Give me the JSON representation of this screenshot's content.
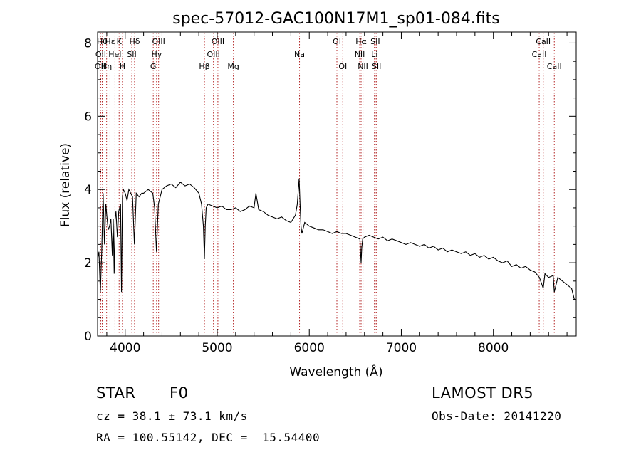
{
  "chart_data": {
    "type": "line",
    "title": "spec-57012-GAC100N17M1_sp01-084.fits",
    "xlabel": "Wavelength (Å)",
    "ylabel": "Flux (relative)",
    "xlim": [
      3700,
      8900
    ],
    "ylim": [
      0,
      8.3
    ],
    "x_ticks": [
      4000,
      5000,
      6000,
      7000,
      8000
    ],
    "y_ticks": [
      0,
      2,
      4,
      6,
      8
    ],
    "grid": false,
    "line_color": "#000000",
    "marker_line_color": "#b22222",
    "series": [
      {
        "x": [
          3700,
          3715,
          3730,
          3745,
          3760,
          3775,
          3790,
          3800,
          3815,
          3830,
          3845,
          3860,
          3870,
          3880,
          3890,
          3900,
          3915,
          3930,
          3950,
          3960,
          3970,
          3980,
          4000,
          4020,
          4040,
          4060,
          4080,
          4100,
          4120,
          4150,
          4180,
          4200,
          4250,
          4300,
          4320,
          4340,
          4360,
          4380,
          4400,
          4450,
          4500,
          4550,
          4600,
          4650,
          4700,
          4750,
          4800,
          4830,
          4850,
          4861,
          4870,
          4880,
          4900,
          4950,
          5000,
          5050,
          5100,
          5150,
          5200,
          5250,
          5300,
          5350,
          5400,
          5420,
          5450,
          5500,
          5550,
          5600,
          5650,
          5700,
          5750,
          5800,
          5850,
          5870,
          5890,
          5900,
          5910,
          5920,
          5950,
          6000,
          6050,
          6100,
          6150,
          6200,
          6250,
          6300,
          6350,
          6400,
          6450,
          6500,
          6550,
          6563,
          6570,
          6580,
          6600,
          6650,
          6700,
          6750,
          6800,
          6850,
          6900,
          6950,
          7000,
          7050,
          7100,
          7150,
          7200,
          7250,
          7300,
          7350,
          7400,
          7450,
          7500,
          7550,
          7600,
          7650,
          7700,
          7750,
          7800,
          7850,
          7900,
          7950,
          8000,
          8050,
          8100,
          8150,
          8200,
          8250,
          8300,
          8350,
          8400,
          8450,
          8500,
          8542,
          8560,
          8600,
          8650,
          8662,
          8700,
          8750,
          8800,
          8850,
          8880
        ],
        "y": [
          2.1,
          2.3,
          1.2,
          2.3,
          3.9,
          2.5,
          3.6,
          3.3,
          2.9,
          3.0,
          3.2,
          2.2,
          3.2,
          1.7,
          3.2,
          3.4,
          2.7,
          3.4,
          3.6,
          1.2,
          3.8,
          4.0,
          3.9,
          3.7,
          4.0,
          3.9,
          3.8,
          2.5,
          3.9,
          3.8,
          3.9,
          3.9,
          4.0,
          3.9,
          3.5,
          2.3,
          3.6,
          3.8,
          4.0,
          4.1,
          4.15,
          4.05,
          4.2,
          4.1,
          4.15,
          4.05,
          3.9,
          3.6,
          3.0,
          2.1,
          3.0,
          3.5,
          3.6,
          3.55,
          3.5,
          3.55,
          3.45,
          3.45,
          3.5,
          3.4,
          3.45,
          3.55,
          3.5,
          3.9,
          3.45,
          3.4,
          3.3,
          3.25,
          3.2,
          3.25,
          3.15,
          3.1,
          3.3,
          3.6,
          4.3,
          3.6,
          3.0,
          2.8,
          3.1,
          3.0,
          2.95,
          2.9,
          2.9,
          2.85,
          2.8,
          2.85,
          2.8,
          2.8,
          2.75,
          2.7,
          2.65,
          2.0,
          2.4,
          2.65,
          2.7,
          2.75,
          2.7,
          2.65,
          2.7,
          2.6,
          2.65,
          2.6,
          2.55,
          2.5,
          2.55,
          2.5,
          2.45,
          2.5,
          2.4,
          2.45,
          2.35,
          2.4,
          2.3,
          2.35,
          2.3,
          2.25,
          2.3,
          2.2,
          2.25,
          2.15,
          2.2,
          2.1,
          2.15,
          2.05,
          2.0,
          2.05,
          1.9,
          1.95,
          1.85,
          1.9,
          1.8,
          1.75,
          1.6,
          1.3,
          1.7,
          1.6,
          1.65,
          1.2,
          1.6,
          1.5,
          1.4,
          1.3,
          1.0
        ]
      }
    ],
    "line_markers": [
      {
        "wavelength": 3727,
        "label": "OII",
        "row": 2
      },
      {
        "wavelength": 3734,
        "label": "OII",
        "row": 1
      },
      {
        "wavelength": 3750,
        "label": "Hθ",
        "row": 0
      },
      {
        "wavelength": 3798,
        "label": "Hη",
        "row": 2
      },
      {
        "wavelength": 3835,
        "label": "Hε",
        "row": 0
      },
      {
        "wavelength": 3889,
        "label": "HeI",
        "row": 1
      },
      {
        "wavelength": 3934,
        "label": "K",
        "row": 0
      },
      {
        "wavelength": 3970,
        "label": "H",
        "row": 2
      },
      {
        "wavelength": 4072,
        "label": "SII",
        "row": 1
      },
      {
        "wavelength": 4102,
        "label": "Hδ",
        "row": 0
      },
      {
        "wavelength": 4305,
        "label": "G",
        "row": 2
      },
      {
        "wavelength": 4341,
        "label": "Hγ",
        "row": 1
      },
      {
        "wavelength": 4363,
        "label": "OIII",
        "row": 0
      },
      {
        "wavelength": 4861,
        "label": "Hβ",
        "row": 2
      },
      {
        "wavelength": 4959,
        "label": "OIII",
        "row": 1
      },
      {
        "wavelength": 5007,
        "label": "OIII",
        "row": 0
      },
      {
        "wavelength": 5175,
        "label": "Mg",
        "row": 2
      },
      {
        "wavelength": 5894,
        "label": "Na",
        "row": 1
      },
      {
        "wavelength": 6300,
        "label": "OI",
        "row": 0
      },
      {
        "wavelength": 6364,
        "label": "OI",
        "row": 2
      },
      {
        "wavelength": 6548,
        "label": "NII",
        "row": 1
      },
      {
        "wavelength": 6563,
        "label": "Hα",
        "row": 0
      },
      {
        "wavelength": 6583,
        "label": "NII",
        "row": 2
      },
      {
        "wavelength": 6708,
        "label": "Li",
        "row": 1
      },
      {
        "wavelength": 6717,
        "label": "SII",
        "row": 0
      },
      {
        "wavelength": 6731,
        "label": "SII",
        "row": 2
      },
      {
        "wavelength": 8498,
        "label": "CaII",
        "row": 1
      },
      {
        "wavelength": 8542,
        "label": "CaII",
        "row": 0
      },
      {
        "wavelength": 8662,
        "label": "CaII",
        "row": 2
      }
    ]
  },
  "info": {
    "object_class": "STAR",
    "subclass": "F0",
    "survey": "LAMOST DR5",
    "redshift": "cz = 38.1 ± 73.1 km/s",
    "obs_date": "Obs-Date: 20141220",
    "coords": "RA = 100.55142, DEC =  15.54400"
  }
}
